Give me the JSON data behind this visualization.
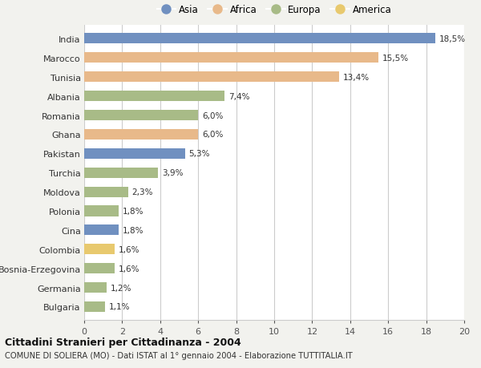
{
  "countries": [
    "India",
    "Marocco",
    "Tunisia",
    "Albania",
    "Romania",
    "Ghana",
    "Pakistan",
    "Turchia",
    "Moldova",
    "Polonia",
    "Cina",
    "Colombia",
    "Bosnia-Erzegovina",
    "Germania",
    "Bulgaria"
  ],
  "values": [
    18.5,
    15.5,
    13.4,
    7.4,
    6.0,
    6.0,
    5.3,
    3.9,
    2.3,
    1.8,
    1.8,
    1.6,
    1.6,
    1.2,
    1.1
  ],
  "continents": [
    "Asia",
    "Africa",
    "Africa",
    "Europa",
    "Europa",
    "Africa",
    "Asia",
    "Europa",
    "Europa",
    "Europa",
    "Asia",
    "America",
    "Europa",
    "Europa",
    "Europa"
  ],
  "colors": {
    "Asia": "#7090c0",
    "Africa": "#e8b98a",
    "Europa": "#a8bb87",
    "America": "#e8c96e"
  },
  "legend_order": [
    "Asia",
    "Africa",
    "Europa",
    "America"
  ],
  "title1": "Cittadini Stranieri per Cittadinanza - 2004",
  "title2": "COMUNE DI SOLIERA (MO) - Dati ISTAT al 1° gennaio 2004 - Elaborazione TUTTITALIA.IT",
  "xlim": [
    0,
    20
  ],
  "xticks": [
    0,
    2,
    4,
    6,
    8,
    10,
    12,
    14,
    16,
    18,
    20
  ],
  "background_color": "#f2f2ee",
  "bar_background_color": "#ffffff",
  "grid_color": "#cccccc"
}
